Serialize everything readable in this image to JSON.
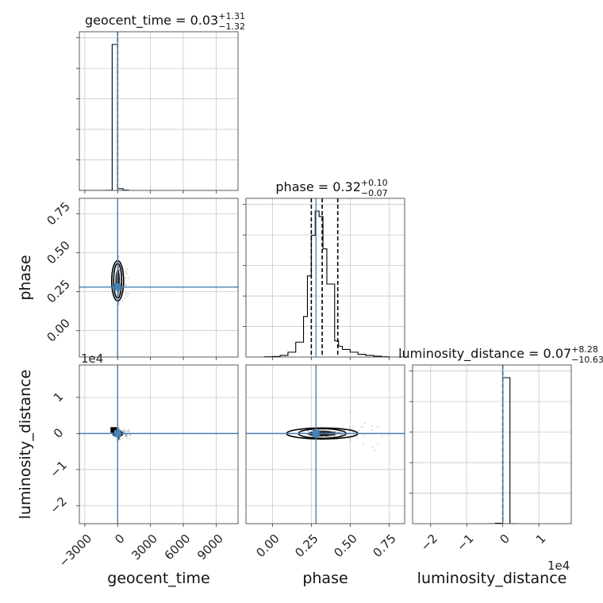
{
  "chart_data": {
    "type": "corner",
    "parameters": [
      "geocent_time",
      "phase",
      "luminosity_distance"
    ],
    "truths": {
      "geocent_time": 0.0,
      "phase": 0.28,
      "luminosity_distance": 0.0
    },
    "titles": {
      "geocent_time": {
        "name": "geocent_time",
        "median": "0.03",
        "plus": "+1.31",
        "minus": "−1.32"
      },
      "phase": {
        "name": "phase",
        "median": "0.32",
        "plus": "+0.10",
        "minus": "−0.07"
      },
      "luminosity_distance": {
        "name": "luminosity_distance",
        "median": "0.07",
        "plus": "+8.28",
        "minus": "−10.63"
      }
    },
    "axis_labels": {
      "geocent_time": "geocent_time",
      "phase": "phase",
      "luminosity_distance": "luminosity_distance"
    },
    "ranges": {
      "geocent_time": [
        -3500,
        11000
      ],
      "phase": [
        -0.17,
        0.85
      ],
      "luminosity_distance": [
        -25000,
        19000
      ]
    },
    "ticks": {
      "geocent_time": {
        "values": [
          -3000,
          0,
          3000,
          6000,
          9000
        ],
        "labels": [
          "−3000",
          "0",
          "3000",
          "6000",
          "9000"
        ]
      },
      "phase": {
        "values": [
          0.0,
          0.25,
          0.5,
          0.75
        ],
        "labels": [
          "0.00",
          "0.25",
          "0.50",
          "0.75"
        ]
      },
      "luminosity_distance": {
        "values": [
          -20000,
          -10000,
          0,
          10000
        ],
        "labels": [
          "−2",
          "−1",
          "0",
          "1"
        ]
      }
    },
    "offset_label": "1e4",
    "histograms": {
      "geocent_time": {
        "edges": [
          -3500,
          -3000,
          -2500,
          -2000,
          -1500,
          -1000,
          -500,
          0,
          500,
          1000
        ],
        "counts": [
          0,
          0,
          0,
          0,
          0,
          0.5,
          980,
          12,
          2
        ]
      },
      "phase": {
        "edges": [
          -0.05,
          0.0,
          0.05,
          0.1,
          0.15,
          0.2,
          0.225,
          0.25,
          0.275,
          0.3,
          0.325,
          0.35,
          0.4,
          0.425,
          0.45,
          0.5,
          0.55,
          0.6,
          0.65,
          0.7,
          0.75
        ],
        "counts": [
          1,
          2,
          6,
          18,
          55,
          150,
          300,
          450,
          540,
          520,
          400,
          270,
          60,
          40,
          28,
          18,
          10,
          6,
          3,
          1
        ]
      },
      "luminosity_distance": {
        "edges": [
          -4000,
          -2000,
          0,
          2000,
          4000
        ],
        "counts": [
          0,
          3,
          960,
          0
        ]
      }
    },
    "quantile_lines": {
      "geocent_time": [
        0.03
      ],
      "phase": [
        0.25,
        0.32,
        0.42
      ],
      "luminosity_distance": [
        0.07
      ]
    },
    "grid": true
  }
}
